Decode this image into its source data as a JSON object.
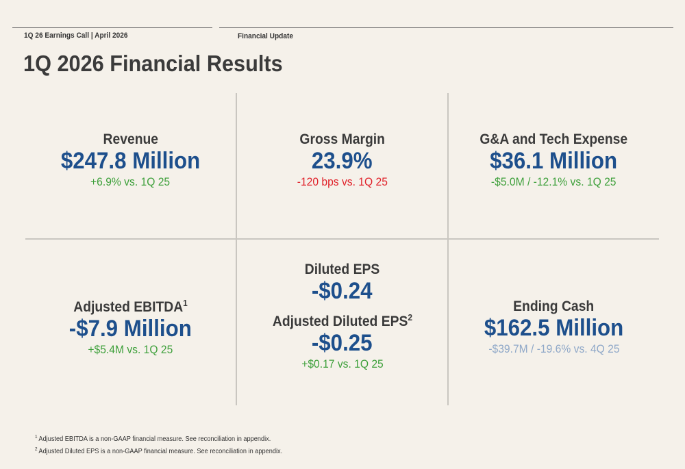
{
  "header": {
    "event": "1Q 26 Earnings Call | April 2026",
    "section": "Financial Update"
  },
  "title": "1Q 2026 Financial Results",
  "metrics": {
    "revenue": {
      "label": "Revenue",
      "value": "$247.8 Million",
      "change": "+6.9% vs. 1Q 25",
      "change_color": "#3ea03b"
    },
    "gross_margin": {
      "label": "Gross Margin",
      "value": "23.9%",
      "change": "-120 bps vs. 1Q 25",
      "change_color": "#e0222a"
    },
    "ga_tech": {
      "label": "G&A and Tech Expense",
      "value": "$36.1 Million",
      "change": "-$5.0M / -12.1% vs. 1Q 25",
      "change_color": "#3ea03b"
    },
    "adj_ebitda": {
      "label": "Adjusted EBITDA",
      "footnote_ref": "1",
      "value": "-$7.9 Million",
      "change": "+$5.4M vs. 1Q 25",
      "change_color": "#3ea03b"
    },
    "diluted_eps": {
      "label": "Diluted EPS",
      "value": "-$0.24"
    },
    "adj_diluted_eps": {
      "label": "Adjusted Diluted EPS",
      "footnote_ref": "2",
      "value": "-$0.25",
      "change": "+$0.17 vs. 1Q 25",
      "change_color": "#3ea03b"
    },
    "ending_cash": {
      "label": "Ending Cash",
      "value": "$162.5 Million",
      "change": "-$39.7M / -19.6% vs. 4Q 25",
      "change_color": "#8fa8c8"
    }
  },
  "footnotes": [
    {
      "num": "1",
      "text": "Adjusted EBITDA is a non-GAAP financial measure. See reconciliation in appendix."
    },
    {
      "num": "2",
      "text": "Adjusted Diluted EPS is a non-GAAP financial measure. See reconciliation in appendix."
    }
  ],
  "colors": {
    "value_blue": "#1d4f8c",
    "background": "#f5f1ea"
  }
}
